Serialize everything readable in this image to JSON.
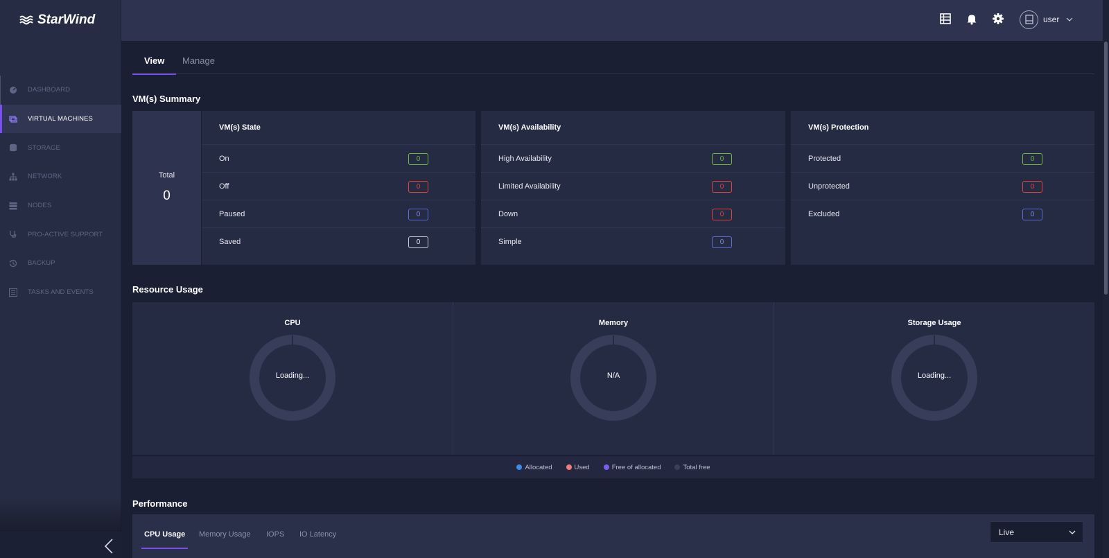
{
  "app": {
    "logo_text": "StarWind"
  },
  "sidebar": {
    "items": [
      {
        "label": "DASHBOARD",
        "icon": "dashboard-icon"
      },
      {
        "label": "VIRTUAL MACHINES",
        "icon": "virtual-machines-icon",
        "active": true
      },
      {
        "label": "STORAGE",
        "icon": "storage-icon"
      },
      {
        "label": "NETWORK",
        "icon": "network-icon"
      },
      {
        "label": "NODES",
        "icon": "nodes-icon"
      },
      {
        "label": "PRO-ACTIVE SUPPORT",
        "icon": "stethoscope-icon"
      },
      {
        "label": "BACKUP",
        "icon": "history-icon"
      },
      {
        "label": "TASKS AND EVENTS",
        "icon": "list-icon"
      }
    ]
  },
  "header": {
    "user_name": "user"
  },
  "tabs": {
    "view": "View",
    "manage": "Manage"
  },
  "summary": {
    "title": "VM(s) Summary",
    "total_label": "Total",
    "total_value": "0",
    "state": {
      "title": "VM(s) State",
      "rows": [
        {
          "label": "On",
          "value": "0",
          "color": "#6fba3e"
        },
        {
          "label": "Off",
          "value": "0",
          "color": "#e0443e"
        },
        {
          "label": "Paused",
          "value": "0",
          "color": "#5b6fd6"
        },
        {
          "label": "Saved",
          "value": "0",
          "color": "#c9ccd8"
        }
      ]
    },
    "availability": {
      "title": "VM(s) Availability",
      "rows": [
        {
          "label": "High Availability",
          "value": "0",
          "color": "#6fba3e"
        },
        {
          "label": "Limited Availability",
          "value": "0",
          "color": "#e0443e"
        },
        {
          "label": "Down",
          "value": "0",
          "color": "#e0443e"
        },
        {
          "label": "Simple",
          "value": "0",
          "color": "#5b6fd6"
        }
      ]
    },
    "protection": {
      "title": "VM(s) Protection",
      "rows": [
        {
          "label": "Protected",
          "value": "0",
          "color": "#6fba3e"
        },
        {
          "label": "Unprotected",
          "value": "0",
          "color": "#e0443e"
        },
        {
          "label": "Excluded",
          "value": "0",
          "color": "#5b6fd6"
        }
      ]
    }
  },
  "resource": {
    "title": "Resource Usage",
    "cpu": {
      "title": "CPU",
      "status": "Loading..."
    },
    "memory": {
      "title": "Memory",
      "status": "N/A"
    },
    "storage": {
      "title": "Storage Usage",
      "status": "Loading..."
    },
    "legend": [
      {
        "label": "Allocated",
        "color": "#3d8be8"
      },
      {
        "label": "Used",
        "color": "#f07b7b"
      },
      {
        "label": "Free of allocated",
        "color": "#7a5cf0"
      },
      {
        "label": "Total free",
        "color": "#3a3f5c"
      }
    ]
  },
  "performance": {
    "title": "Performance",
    "tabs": [
      "CPU Usage",
      "Memory Usage",
      "IOPS",
      "IO Latency"
    ],
    "range": "Live"
  },
  "colors": {
    "accent": "#7a4ff0",
    "background": "#1b1f33",
    "sidebar": "#272c45"
  }
}
